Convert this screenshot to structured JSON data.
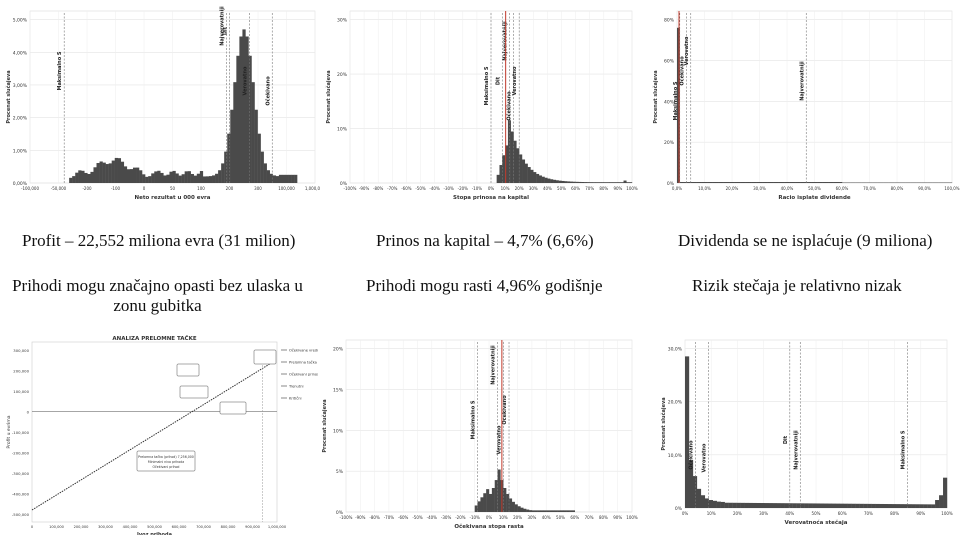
{
  "captions": {
    "profit": "Profit – 22,552 miliona evra (31 milion)",
    "roe": "Prinos na kapital – 4,7% (6,6%)",
    "dividend": "Dividenda se ne isplaćuje (9 miliona)",
    "income": "Prihodi mogu značajno opasti bez ulaska u zonu gubitka",
    "growth": "Prihodi mogu rasti 4,96% godišnje",
    "bankruptcy": "Rizik stečaja je relativno nizak"
  },
  "charts": {
    "profit": {
      "ylabel": "Procenat slučajeva",
      "xlabel": "Neto rezultat u 000 evra",
      "yticks": [
        "0,00%",
        "1,00%",
        "2,00%",
        "3,00%",
        "4,00%",
        "5,00%"
      ],
      "xticks": [
        "-100,000",
        "-50,000",
        "-200",
        "-100",
        "0",
        "50",
        "100",
        "200",
        "300",
        "100,000",
        "1,000,000"
      ],
      "markers": [
        "Maksimalno S",
        "Dit",
        "Najverovatniji",
        "Verovatno",
        "Očekivano"
      ]
    },
    "roe": {
      "ylabel": "Procenat slučajeva",
      "xlabel": "Stopa prinosa na kapital",
      "yticks": [
        "0%",
        "10%",
        "20%",
        "30%"
      ],
      "xticks": [
        "-100%",
        "-90%",
        "-80%",
        "-70%",
        "-60%",
        "-50%",
        "-40%",
        "-30%",
        "-20%",
        "-10%",
        "0%",
        "10%",
        "20%",
        "30%",
        "40%",
        "50%",
        "60%",
        "70%",
        "80%",
        "90%",
        "100%"
      ],
      "markers": [
        "Maksimalno S",
        "Dit",
        "Najverovatniji",
        "Očekivano",
        "Verovatno"
      ]
    },
    "dividend": {
      "ylabel": "Procenat slučajeva",
      "xlabel": "Racio isplate dividende",
      "yticks": [
        "0%",
        "20%",
        "40%",
        "60%",
        "80%"
      ],
      "xticks": [
        "0,0%",
        "10,0%",
        "20,0%",
        "30,0%",
        "40,0%",
        "50,0%",
        "60,0%",
        "70,0%",
        "80,0%",
        "90,0%",
        "100,0%"
      ],
      "markers": [
        "Maksimalno S",
        "Očekivano",
        "Verovatno",
        "Najverovatniji"
      ]
    },
    "breakeven": {
      "title": "ANALIZA PRELOMNE TAČKE",
      "ylabel": "Profit u evrima",
      "xlabel": "Ivoz prihoda",
      "yticks": [
        "300,000",
        "200,000",
        "100,000",
        "0",
        "-100,000",
        "-200,000",
        "-300,000",
        "-400,000",
        "-500,000"
      ],
      "xticks": [
        "0",
        "100,000",
        "200,000",
        "300,000",
        "400,000",
        "500,000",
        "600,000",
        "700,000",
        "800,000",
        "900,000",
        "1,000,000"
      ],
      "legend": [
        "Očekivane vrednosti",
        "Prelomna tačka",
        "Očekivani prinos",
        "Trenutni",
        "Kritični"
      ],
      "callouts": [
        "Prelomna tačka (prihod) 7,256,000",
        "Minimalni nivo prihoda",
        "Očekivani prihod"
      ]
    },
    "growth": {
      "ylabel": "Procenat slučajeva",
      "xlabel": "Očekivana stopa rasta",
      "yticks": [
        "0%",
        "5%",
        "10%",
        "15%",
        "20%"
      ],
      "xticks": [
        "-100%",
        "-90%",
        "-80%",
        "-70%",
        "-60%",
        "-50%",
        "-40%",
        "-30%",
        "-20%",
        "-10%",
        "0%",
        "10%",
        "20%",
        "30%",
        "40%",
        "50%",
        "60%",
        "70%",
        "80%",
        "90%",
        "100%"
      ],
      "markers": [
        "Maksimalno S",
        "Najverovatniji",
        "Očekivano",
        "Verovatno"
      ]
    },
    "bankruptcy": {
      "ylabel": "Procenat slučajeva",
      "xlabel": "Verovatnoća stečaja",
      "yticks": [
        "0%",
        "10,0%",
        "20,0%",
        "30,0%"
      ],
      "xticks": [
        "0%",
        "10%",
        "20%",
        "30%",
        "40%",
        "50%",
        "60%",
        "70%",
        "80%",
        "90%",
        "100%"
      ],
      "markers": [
        "Očekivano",
        "Verovatno",
        "Dit",
        "Najverovatniji",
        "Maksimalno S"
      ]
    }
  }
}
